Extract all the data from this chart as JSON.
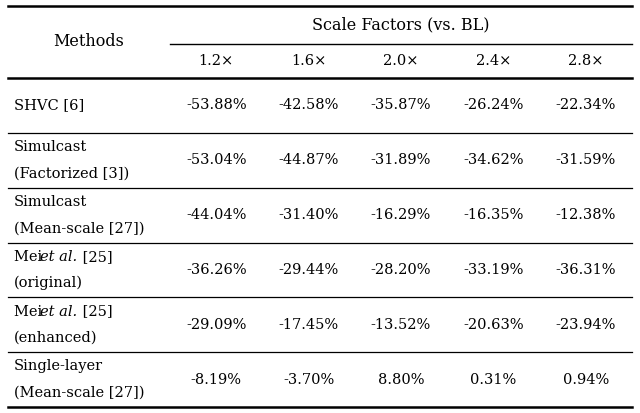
{
  "title": "Scale Factors (vs. BL)",
  "scale_labels": [
    "1.2×",
    "1.6×",
    "2.0×",
    "2.4×",
    "2.8×"
  ],
  "rows": [
    {
      "method_lines": [
        "SHVC [6]"
      ],
      "italic_line": false,
      "values": [
        "-53.88%",
        "-42.58%",
        "-35.87%",
        "-26.24%",
        "-22.34%"
      ]
    },
    {
      "method_lines": [
        "Simulcast",
        "(Factorized [3])"
      ],
      "italic_line": false,
      "values": [
        "-53.04%",
        "-44.87%",
        "-31.89%",
        "-34.62%",
        "-31.59%"
      ]
    },
    {
      "method_lines": [
        "Simulcast",
        "(Mean-scale [27])"
      ],
      "italic_line": false,
      "values": [
        "-44.04%",
        "-31.40%",
        "-16.29%",
        "-16.35%",
        "-12.38%"
      ]
    },
    {
      "method_lines": [
        "Mei et al. [25]",
        "(original)"
      ],
      "italic_line": true,
      "values": [
        "-36.26%",
        "-29.44%",
        "-28.20%",
        "-33.19%",
        "-36.31%"
      ]
    },
    {
      "method_lines": [
        "Mei et al. [25]",
        "(enhanced)"
      ],
      "italic_line": true,
      "values": [
        "-29.09%",
        "-17.45%",
        "-13.52%",
        "-20.63%",
        "-23.94%"
      ]
    },
    {
      "method_lines": [
        "Single-layer",
        "(Mean-scale [27])"
      ],
      "italic_line": false,
      "values": [
        "-8.19%",
        "-3.70%",
        "8.80%",
        "0.31%",
        "0.94%"
      ]
    }
  ],
  "bg_color": "#ffffff",
  "text_color": "#000000",
  "font_family": "DejaVu Serif",
  "font_size": 10.5,
  "header_font_size": 11.5
}
